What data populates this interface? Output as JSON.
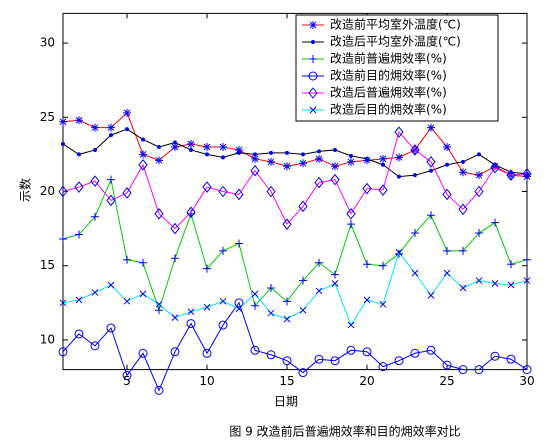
{
  "chart_data": {
    "type": "line",
    "x_label": "日期",
    "y_label": "示数",
    "caption": "图 9 改造前后普遍㶲效率和目的㶲效率对比",
    "x": [
      1,
      2,
      3,
      4,
      5,
      6,
      7,
      8,
      9,
      10,
      11,
      12,
      13,
      14,
      15,
      16,
      17,
      18,
      19,
      20,
      21,
      22,
      23,
      24,
      25,
      26,
      27,
      28,
      29,
      30
    ],
    "xlim": [
      1,
      30
    ],
    "xticks": [
      5,
      10,
      15,
      20,
      25,
      30
    ],
    "ylim": [
      8,
      32
    ],
    "yticks": [
      10,
      15,
      20,
      25,
      30
    ],
    "legend": "upper right",
    "series": [
      {
        "name": "改造前平均室外温度(℃)",
        "color": "#ff0000",
        "marker": "star",
        "marker_color": "#0000ff",
        "values": [
          24.7,
          24.8,
          24.3,
          24.3,
          25.3,
          22.5,
          22.1,
          23.0,
          23.2,
          23.0,
          23.0,
          22.8,
          22.2,
          22.0,
          21.7,
          21.9,
          22.2,
          21.7,
          22.0,
          22.1,
          22.2,
          22.3,
          22.8,
          24.3,
          23.0,
          21.3,
          21.1,
          21.7,
          21.1,
          21.0
        ]
      },
      {
        "name": "改造后平均室外温度(℃)",
        "color": "#000000",
        "marker": "dot",
        "marker_color": "#0000ff",
        "values": [
          23.2,
          22.5,
          22.8,
          23.8,
          24.2,
          23.5,
          23.0,
          23.3,
          22.8,
          22.5,
          22.3,
          22.6,
          22.5,
          22.6,
          22.6,
          22.5,
          22.7,
          22.8,
          22.4,
          22.2,
          21.8,
          21.0,
          21.1,
          21.4,
          21.8,
          22.0,
          22.5,
          21.8,
          21.3,
          21.2
        ]
      },
      {
        "name": "改造前普遍㶲效率(%)",
        "color": "#00cc00",
        "marker": "plus",
        "marker_color": "#0000ff",
        "values": [
          16.8,
          17.1,
          18.3,
          20.8,
          15.4,
          15.2,
          12.0,
          15.5,
          18.5,
          14.8,
          16.0,
          16.5,
          12.3,
          13.5,
          12.6,
          14.0,
          15.2,
          14.4,
          17.8,
          15.1,
          15.0,
          15.8,
          17.2,
          18.4,
          16.0,
          16.0,
          17.2,
          17.9,
          15.1,
          15.4
        ]
      },
      {
        "name": "改造前目的㶲效率(%)",
        "color": "#0000ff",
        "marker": "circle",
        "marker_color": "#0000ff",
        "values": [
          9.2,
          10.4,
          9.6,
          10.8,
          7.6,
          9.1,
          6.6,
          9.2,
          11.1,
          9.1,
          11.0,
          12.5,
          9.3,
          9.0,
          8.6,
          7.8,
          8.7,
          8.6,
          9.3,
          9.2,
          8.2,
          8.6,
          9.1,
          9.3,
          8.3,
          8.0,
          8.0,
          8.9,
          8.7,
          8.0
        ]
      },
      {
        "name": "改造后普遍㶲效率(%)",
        "color": "#ff00ff",
        "marker": "diamond",
        "marker_color": "#0000ff",
        "values": [
          20.0,
          20.3,
          20.7,
          19.4,
          19.9,
          21.8,
          18.5,
          17.5,
          18.6,
          20.3,
          20.0,
          19.8,
          21.4,
          20.0,
          17.8,
          19.0,
          20.6,
          20.8,
          18.5,
          20.2,
          20.1,
          24.0,
          22.8,
          22.0,
          19.8,
          18.8,
          20.0,
          21.6,
          21.1,
          21.2
        ]
      },
      {
        "name": "改造后目的㶲效率(%)",
        "color": "#00e5ee",
        "marker": "x",
        "marker_color": "#0000ff",
        "values": [
          12.5,
          12.7,
          13.2,
          13.7,
          12.6,
          13.1,
          12.4,
          11.5,
          11.9,
          12.2,
          12.6,
          12.1,
          13.1,
          11.8,
          11.4,
          12.0,
          13.3,
          13.8,
          11.0,
          12.7,
          12.4,
          15.9,
          14.5,
          13.0,
          14.5,
          13.5,
          14.0,
          13.8,
          13.7,
          14.0
        ]
      }
    ]
  }
}
